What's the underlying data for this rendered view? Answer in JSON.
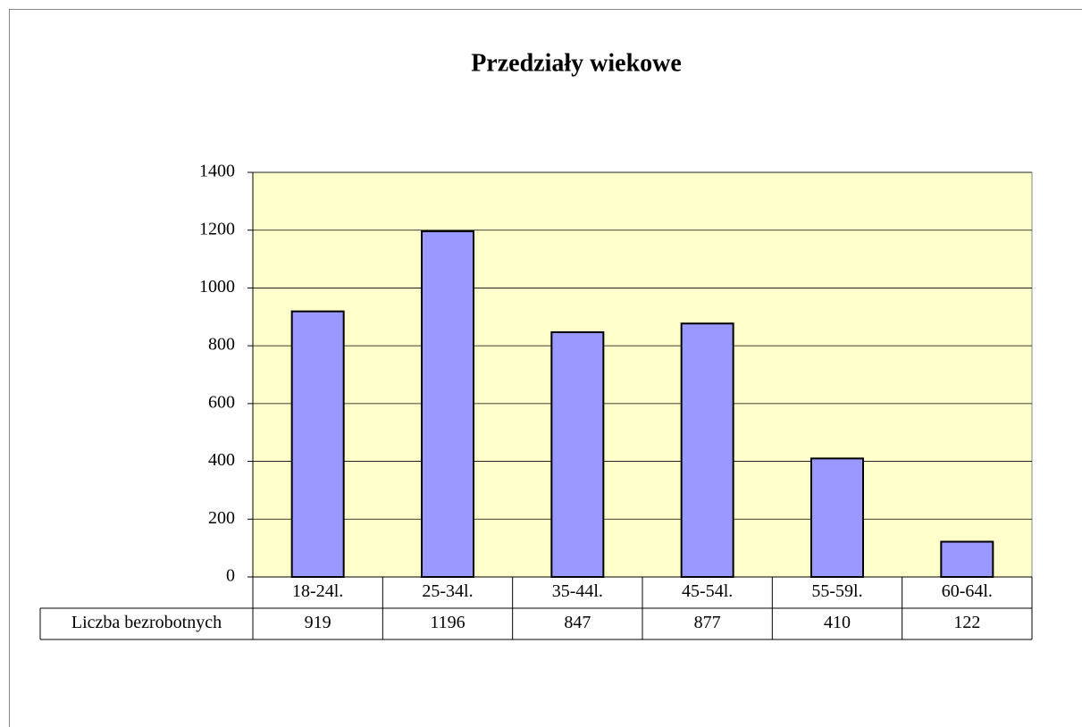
{
  "chart_data": {
    "type": "bar",
    "title": "Przedziały wiekowe",
    "categories": [
      "18-24l.",
      "25-34l.",
      "35-44l.",
      "45-54l.",
      "55-59l.",
      "60-64l."
    ],
    "series": [
      {
        "name": "Liczba bezrobotnych",
        "color": "#9999ff",
        "values": [
          919,
          1196,
          847,
          877,
          410,
          122
        ]
      }
    ],
    "ylim": [
      0,
      1400
    ],
    "yticks": [
      0,
      200,
      400,
      600,
      800,
      1000,
      1200,
      1400
    ],
    "grid": true,
    "plot_background": "#ffffcc",
    "data_table": true
  }
}
